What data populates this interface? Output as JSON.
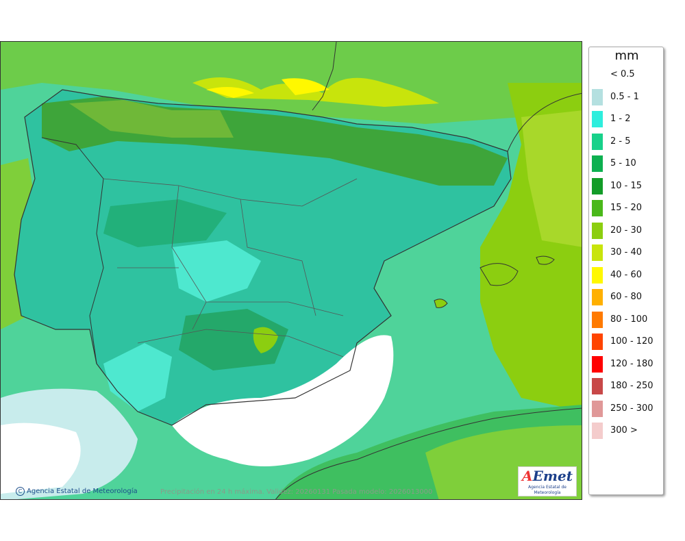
{
  "legend": {
    "unit": "mm",
    "items": [
      {
        "label": "< 0.5",
        "color": "#ffffff"
      },
      {
        "label": "0.5 - 1",
        "color": "#b4e0e0"
      },
      {
        "label": "1 - 2",
        "color": "#2eeedd"
      },
      {
        "label": "2 - 5",
        "color": "#18d18a"
      },
      {
        "label": "5 - 10",
        "color": "#0db050"
      },
      {
        "label": "10 - 15",
        "color": "#139c28"
      },
      {
        "label": "15 - 20",
        "color": "#4ab81a"
      },
      {
        "label": "20 - 30",
        "color": "#8cce10"
      },
      {
        "label": "30 - 40",
        "color": "#c8e40c"
      },
      {
        "label": "40 - 60",
        "color": "#fff800"
      },
      {
        "label": "60 - 80",
        "color": "#ffb000"
      },
      {
        "label": "80 - 100",
        "color": "#ff7a00"
      },
      {
        "label": "100 - 120",
        "color": "#ff4400"
      },
      {
        "label": "120 - 180",
        "color": "#ff0000"
      },
      {
        "label": "180 - 250",
        "color": "#c84848"
      },
      {
        "label": "250 - 300",
        "color": "#e09898"
      },
      {
        "label": "300 >",
        "color": "#f4cccc"
      }
    ]
  },
  "credit": "Agencia Estatal de Meteorología",
  "caption": "Precipitación en 24 h máxima. Validez: 20260131 Pasada modelo: 2026013000",
  "logo": {
    "mark_a": "A",
    "mark_rest": "Emet",
    "subtitle": "Agencia Estatal de Meteorología"
  }
}
